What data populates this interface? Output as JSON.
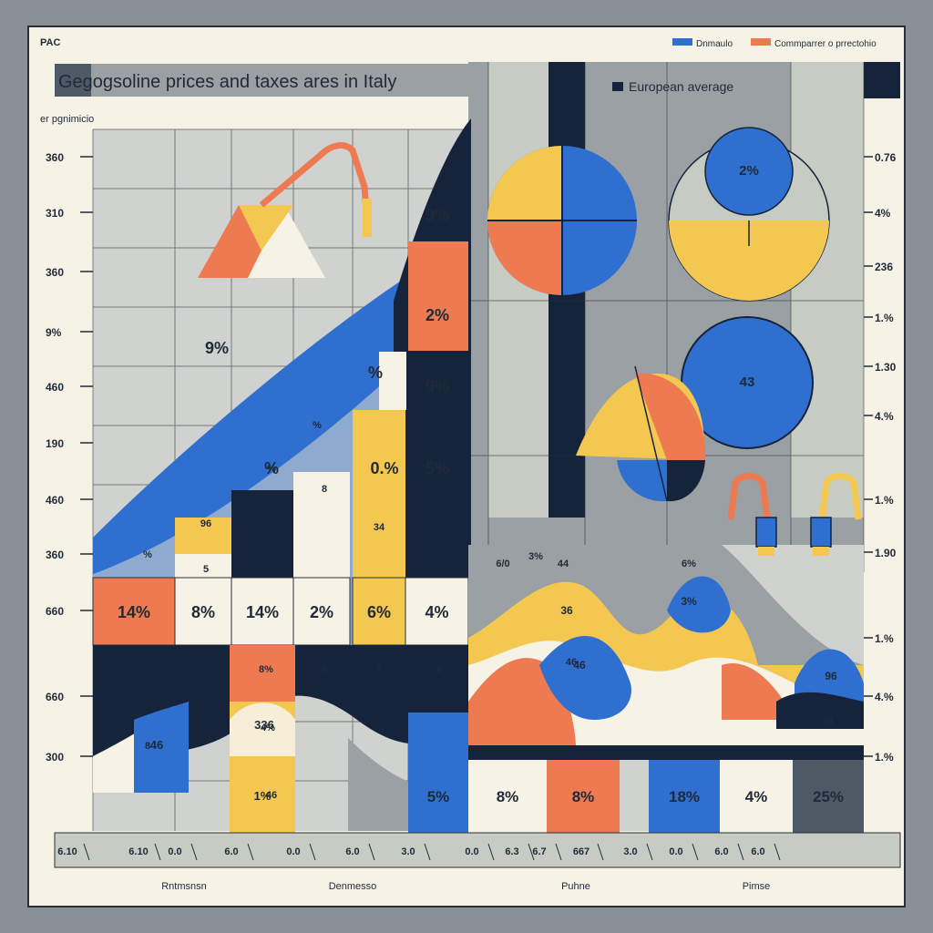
{
  "header": {
    "corner_label": "PAC",
    "title": "Gegogsoline prices and taxes ares in Italy",
    "y_axis_caption": "er pgnimicio",
    "inset_legend": "European average"
  },
  "legend": [
    {
      "label": "Dnmaulo",
      "color": "#2f6fd0"
    },
    {
      "label": "Commparrer o prrectohio",
      "color": "#ee7a52"
    }
  ],
  "colors": {
    "navy": "#15243a",
    "blue": "#2f6fd0",
    "orange": "#ee7a52",
    "yellow": "#f4c850",
    "cream": "#f7f2e6",
    "grey": "#9aa0a3",
    "light_grey": "#cfd2cf",
    "sage": "#c6cbc4"
  },
  "chart_data": {
    "type": "bar",
    "title": "Gegogsoline prices and taxes ares in Italy",
    "ylabel": "er pgnimicio",
    "left_y_ticks": [
      "360",
      "310",
      "360",
      "9%",
      "460",
      "190",
      "460",
      "360",
      "660",
      "660",
      "300"
    ],
    "right_y_ticks": [
      "0.76",
      "4%",
      "236",
      "1.%",
      "1.30",
      "4.%",
      "1.%",
      "1.90",
      "1.%",
      "4.%",
      "1.%"
    ],
    "x_ticks": [
      "6.10",
      "6.10",
      "0.0",
      "6.0",
      "0.0",
      "6.0",
      "3.0",
      "0.0",
      "6.3",
      "6.7",
      "667",
      "3.0",
      "0.0",
      "6.0",
      "6.0"
    ],
    "x_categories": [
      "Rntmsnsn",
      "Denmesso",
      "Puhne",
      "Pimse"
    ],
    "bar_row_labels": [
      "14%",
      "8%",
      "14%",
      "2%",
      "6%",
      "4%"
    ],
    "upper_area_labels": [
      "9%",
      "2%",
      "9%",
      "5%",
      "0.%",
      "%",
      "%",
      "9%"
    ],
    "small_labels": [
      "%",
      "96",
      "5",
      "%",
      "8",
      "34",
      "%",
      "8",
      "8%",
      "8",
      "8",
      "8",
      "46",
      "4%",
      "3%",
      "46"
    ],
    "bottom_right_labels": [
      "5%",
      "8%",
      "8%",
      "18%",
      "4%",
      "25%"
    ],
    "bottom_left_labels": [
      "46",
      "336",
      "1%"
    ],
    "wave_top_labels": [
      "6/0",
      "44",
      "6%"
    ],
    "wave_labels": [
      "36",
      "46",
      "3%",
      "96",
      "30"
    ],
    "pies": [
      {
        "name": "",
        "label": ""
      },
      {
        "name": "",
        "label": "2%"
      },
      {
        "name": "",
        "label": "43"
      }
    ],
    "grid": true,
    "legend_position": "top-right"
  }
}
